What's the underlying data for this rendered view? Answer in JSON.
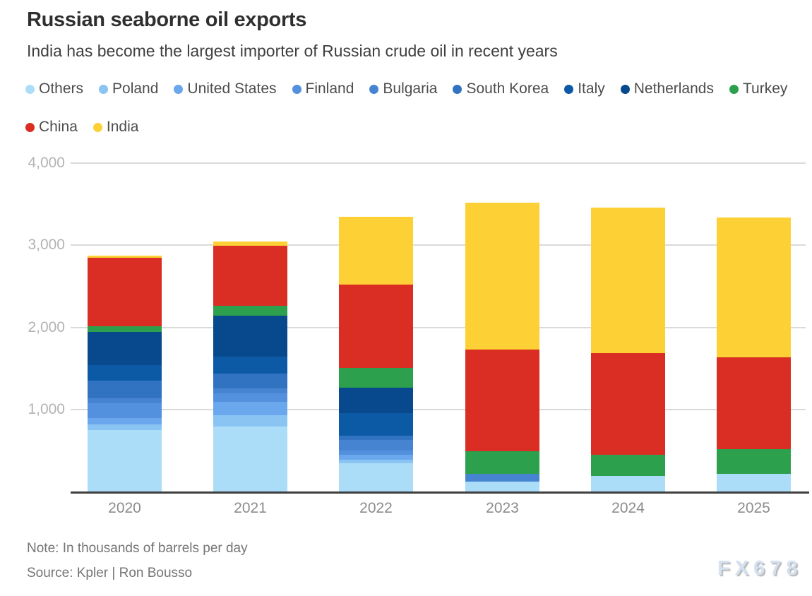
{
  "chart_data": {
    "type": "bar",
    "stacked": true,
    "title": "Russian seaborne oil exports",
    "subtitle": "India has become the largest importer of Russian crude oil in recent years",
    "categories": [
      "2020",
      "2021",
      "2022",
      "2023",
      "2024",
      "2025"
    ],
    "series": [
      {
        "name": "Others",
        "color": "#abddf8",
        "values": [
          750,
          790,
          345,
          120,
          190,
          215
        ]
      },
      {
        "name": "Poland",
        "color": "#8ac4f2",
        "values": [
          70,
          140,
          45,
          0,
          0,
          0
        ]
      },
      {
        "name": "United States",
        "color": "#6aa7ec",
        "values": [
          75,
          165,
          60,
          0,
          0,
          0
        ]
      },
      {
        "name": "Finland",
        "color": "#5390dd",
        "values": [
          180,
          105,
          50,
          0,
          0,
          0
        ]
      },
      {
        "name": "Bulgaria",
        "color": "#4684d1",
        "values": [
          60,
          60,
          130,
          95,
          0,
          0
        ]
      },
      {
        "name": "South Korea",
        "color": "#3173c0",
        "values": [
          215,
          180,
          50,
          0,
          0,
          0
        ]
      },
      {
        "name": "Italy",
        "color": "#0c5aa6",
        "values": [
          190,
          205,
          275,
          0,
          0,
          0
        ]
      },
      {
        "name": "Netherlands",
        "color": "#07498c",
        "values": [
          405,
          500,
          310,
          0,
          0,
          0
        ]
      },
      {
        "name": "Turkey",
        "color": "#2da04e",
        "values": [
          70,
          120,
          240,
          275,
          260,
          300
        ]
      },
      {
        "name": "China",
        "color": "#da2d23",
        "values": [
          830,
          725,
          1020,
          1240,
          1240,
          1120
        ]
      },
      {
        "name": "India",
        "color": "#fdd135",
        "values": [
          25,
          55,
          820,
          1790,
          1770,
          1705
        ]
      }
    ],
    "totals": [
      2870,
      3045,
      3345,
      3520,
      3460,
      3340
    ],
    "unit": "thousands of barrels per day",
    "ylim": [
      0,
      4000
    ],
    "yticks": [
      {
        "value": 4000,
        "label": "4,000"
      },
      {
        "value": 3000,
        "label": "3,000"
      },
      {
        "value": 2000,
        "label": "2,000"
      },
      {
        "value": 1000,
        "label": "1,000"
      }
    ],
    "grid": true,
    "legend_position": "top"
  },
  "footer": {
    "note": "Note: In thousands of barrels per day",
    "source": "Source: Kpler | Ron Bousso",
    "watermark": "FX678"
  }
}
